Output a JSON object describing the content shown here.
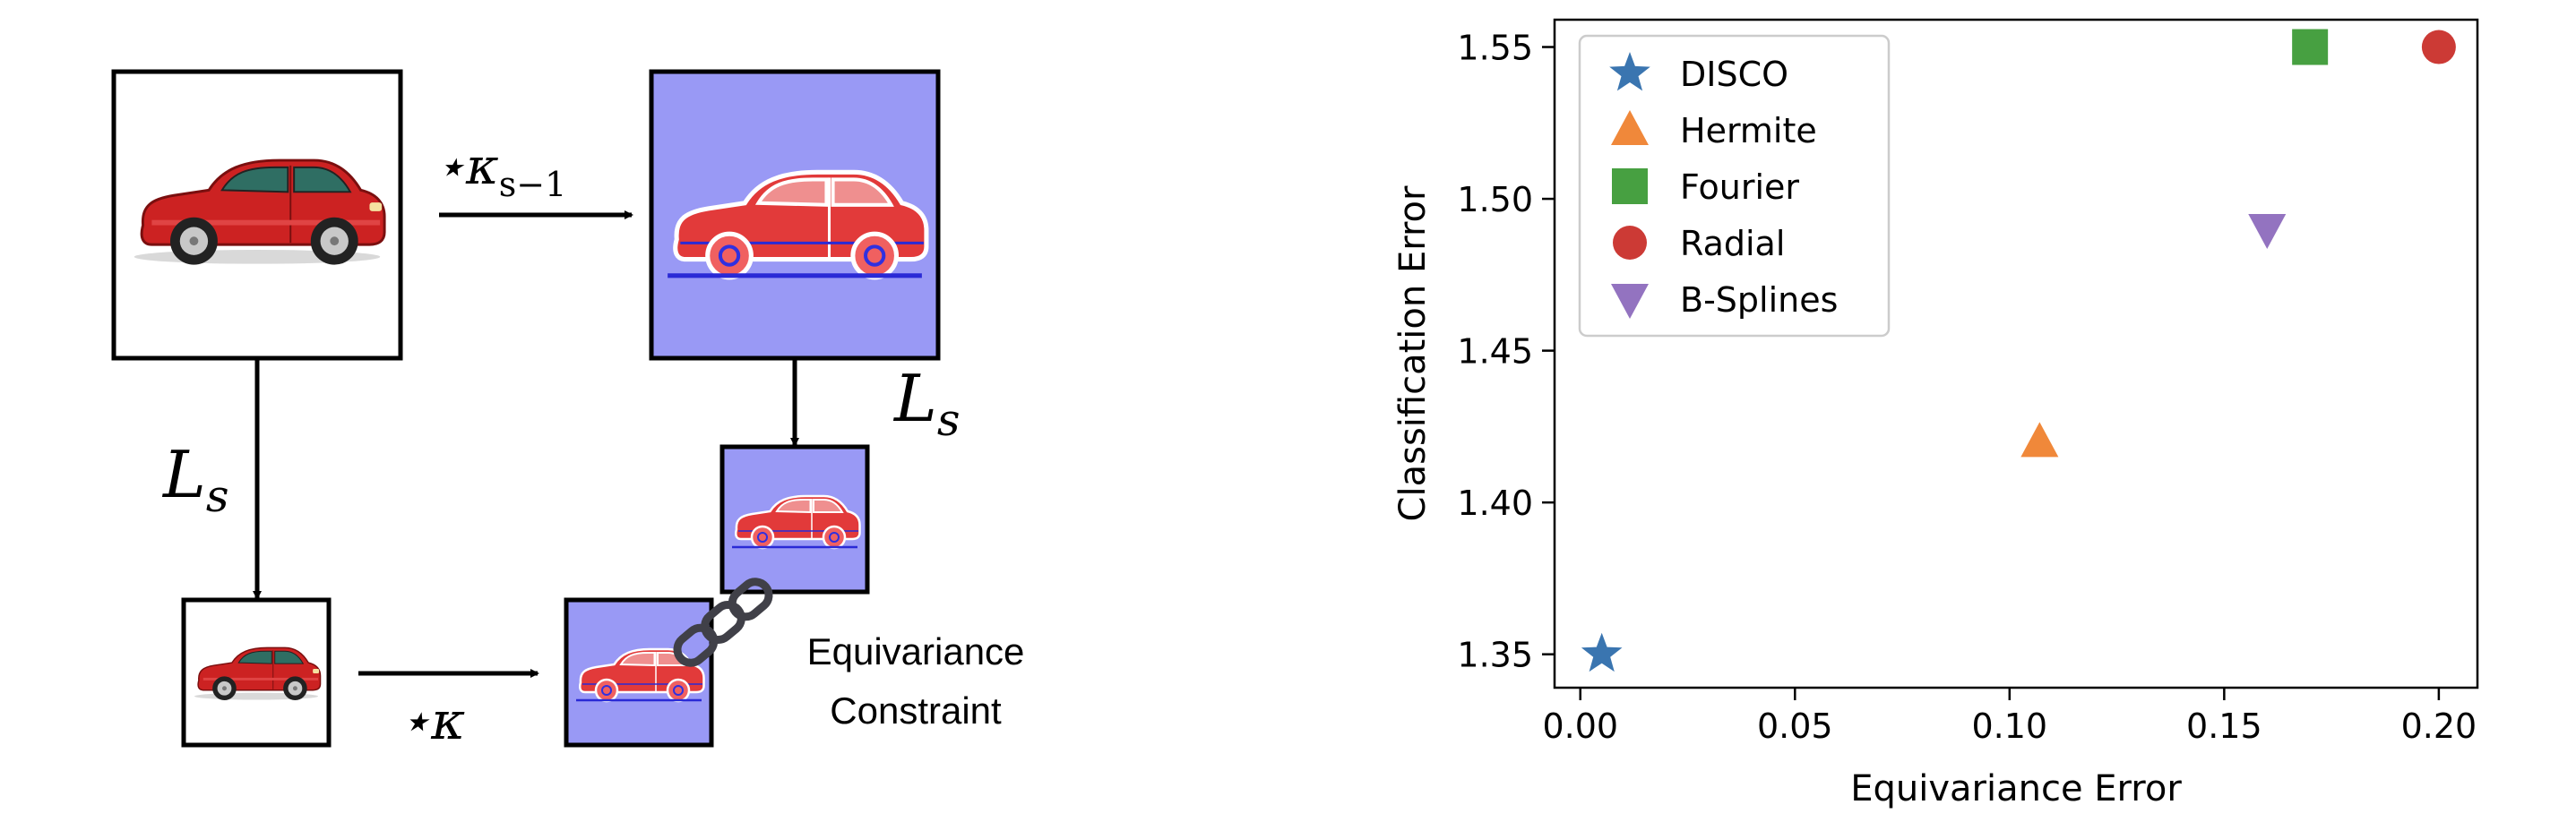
{
  "diagram": {
    "conv_top_label": "⋆κ",
    "conv_top_sub": "s−1",
    "downscale_left_label": "L",
    "downscale_right_label": "L",
    "downscale_sub": "s",
    "conv_bottom_label": "⋆κ",
    "constraint_label_line1": "Equivariance",
    "constraint_label_line2": "Constraint",
    "colors": {
      "filtered_background": "#9999f5",
      "car_red": "#cc2222",
      "chain": "#404048"
    }
  },
  "chart_data": {
    "type": "scatter",
    "xlabel": "Equivariance Error",
    "ylabel": "Classification Error",
    "xlim": [
      -0.006,
      0.209
    ],
    "ylim": [
      1.339,
      1.559
    ],
    "xticks": [
      0.0,
      0.05,
      0.1,
      0.15,
      0.2
    ],
    "xtick_labels": [
      "0.00",
      "0.05",
      "0.10",
      "0.15",
      "0.20"
    ],
    "yticks": [
      1.35,
      1.4,
      1.45,
      1.5,
      1.55
    ],
    "ytick_labels": [
      "1.35",
      "1.40",
      "1.45",
      "1.50",
      "1.55"
    ],
    "grid": false,
    "legend_position": "top-left",
    "series": [
      {
        "name": "DISCO",
        "marker": "star",
        "color": "#3a75b0",
        "x": [
          0.005
        ],
        "y": [
          1.35
        ]
      },
      {
        "name": "Hermite",
        "marker": "triangle-up",
        "color": "#f0883a",
        "x": [
          0.107
        ],
        "y": [
          1.42
        ]
      },
      {
        "name": "Fourier",
        "marker": "square",
        "color": "#47a041",
        "x": [
          0.17
        ],
        "y": [
          1.55
        ]
      },
      {
        "name": "Radial",
        "marker": "circle",
        "color": "#cc3a35",
        "x": [
          0.2
        ],
        "y": [
          1.55
        ]
      },
      {
        "name": "B-Splines",
        "marker": "triangle-down",
        "color": "#9373c0",
        "x": [
          0.16
        ],
        "y": [
          1.49
        ]
      }
    ]
  }
}
